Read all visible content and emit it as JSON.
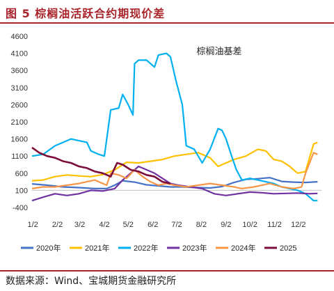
{
  "title": "图 5 棕榈油活跃合约期现价差",
  "source": "数据来源：Wind、宝城期货金融研究所",
  "chart_data": {
    "type": "line",
    "annotation": "棕榈油基差",
    "ylim": [
      -400,
      4600
    ],
    "y_ticks": [
      -400,
      100,
      600,
      1100,
      1600,
      2100,
      2600,
      3100,
      3600,
      4100,
      4600
    ],
    "x_ticks": [
      "1/2",
      "2/2",
      "3/2",
      "4/2",
      "5/2",
      "6/2",
      "7/2",
      "8/2",
      "9/2",
      "10/2",
      "11/2",
      "12/2"
    ],
    "x_unit": "day_of_year",
    "grid": false,
    "legend_position": "bottom",
    "series": [
      {
        "name": "2020年",
        "color": "#4472c4",
        "points": [
          [
            1,
            290
          ],
          [
            20,
            250
          ],
          [
            40,
            200
          ],
          [
            60,
            180
          ],
          [
            80,
            150
          ],
          [
            95,
            150
          ],
          [
            105,
            250
          ],
          [
            115,
            380
          ],
          [
            130,
            340
          ],
          [
            145,
            260
          ],
          [
            160,
            230
          ],
          [
            175,
            200
          ],
          [
            190,
            200
          ],
          [
            210,
            180
          ],
          [
            225,
            170
          ],
          [
            240,
            210
          ],
          [
            255,
            330
          ],
          [
            270,
            420
          ],
          [
            285,
            440
          ],
          [
            300,
            470
          ],
          [
            315,
            360
          ],
          [
            330,
            340
          ],
          [
            345,
            330
          ],
          [
            360,
            350
          ]
        ]
      },
      {
        "name": "2021年",
        "color": "#ffc000",
        "points": [
          [
            1,
            380
          ],
          [
            15,
            400
          ],
          [
            30,
            500
          ],
          [
            45,
            550
          ],
          [
            60,
            520
          ],
          [
            75,
            500
          ],
          [
            90,
            560
          ],
          [
            105,
            700
          ],
          [
            120,
            920
          ],
          [
            135,
            900
          ],
          [
            150,
            950
          ],
          [
            165,
            1000
          ],
          [
            180,
            1100
          ],
          [
            195,
            1150
          ],
          [
            210,
            1200
          ],
          [
            225,
            1050
          ],
          [
            235,
            800
          ],
          [
            245,
            900
          ],
          [
            255,
            1000
          ],
          [
            270,
            1100
          ],
          [
            285,
            1300
          ],
          [
            295,
            1250
          ],
          [
            305,
            1000
          ],
          [
            315,
            950
          ],
          [
            325,
            800
          ],
          [
            335,
            600
          ],
          [
            345,
            650
          ],
          [
            355,
            1450
          ],
          [
            360,
            1500
          ]
        ]
      },
      {
        "name": "2022年",
        "color": "#00b0f0",
        "points": [
          [
            1,
            1100
          ],
          [
            15,
            1150
          ],
          [
            30,
            1400
          ],
          [
            40,
            1500
          ],
          [
            50,
            1600
          ],
          [
            60,
            1550
          ],
          [
            70,
            1500
          ],
          [
            75,
            1250
          ],
          [
            85,
            1150
          ],
          [
            92,
            1100
          ],
          [
            95,
            1600
          ],
          [
            100,
            2450
          ],
          [
            110,
            2500
          ],
          [
            115,
            2900
          ],
          [
            122,
            2600
          ],
          [
            128,
            2300
          ],
          [
            130,
            3800
          ],
          [
            135,
            3900
          ],
          [
            145,
            3900
          ],
          [
            155,
            3700
          ],
          [
            160,
            4050
          ],
          [
            170,
            4100
          ],
          [
            175,
            4000
          ],
          [
            182,
            3300
          ],
          [
            190,
            2600
          ],
          [
            195,
            1400
          ],
          [
            205,
            1300
          ],
          [
            215,
            900
          ],
          [
            225,
            1300
          ],
          [
            235,
            1900
          ],
          [
            240,
            1850
          ],
          [
            245,
            1600
          ],
          [
            252,
            1100
          ],
          [
            258,
            700
          ],
          [
            265,
            400
          ],
          [
            275,
            450
          ],
          [
            285,
            400
          ],
          [
            295,
            350
          ],
          [
            305,
            300
          ],
          [
            315,
            200
          ],
          [
            325,
            150
          ],
          [
            335,
            100
          ],
          [
            345,
            0
          ],
          [
            350,
            -100
          ],
          [
            355,
            -200
          ],
          [
            360,
            -200
          ]
        ]
      },
      {
        "name": "2023年",
        "color": "#7030a0",
        "points": [
          [
            1,
            -200
          ],
          [
            15,
            -100
          ],
          [
            30,
            0
          ],
          [
            45,
            -50
          ],
          [
            60,
            0
          ],
          [
            75,
            100
          ],
          [
            90,
            80
          ],
          [
            105,
            150
          ],
          [
            115,
            400
          ],
          [
            125,
            600
          ],
          [
            135,
            800
          ],
          [
            145,
            700
          ],
          [
            155,
            600
          ],
          [
            165,
            450
          ],
          [
            175,
            300
          ],
          [
            185,
            250
          ],
          [
            200,
            200
          ],
          [
            215,
            150
          ],
          [
            230,
            0
          ],
          [
            245,
            -50
          ],
          [
            260,
            0
          ],
          [
            275,
            50
          ],
          [
            290,
            30
          ],
          [
            305,
            0
          ],
          [
            320,
            10
          ],
          [
            335,
            20
          ],
          [
            350,
            0
          ],
          [
            360,
            10
          ]
        ]
      },
      {
        "name": "2024年",
        "color": "#f79646",
        "points": [
          [
            1,
            150
          ],
          [
            15,
            200
          ],
          [
            30,
            200
          ],
          [
            45,
            250
          ],
          [
            60,
            300
          ],
          [
            70,
            350
          ],
          [
            80,
            400
          ],
          [
            90,
            300
          ],
          [
            95,
            250
          ],
          [
            100,
            600
          ],
          [
            110,
            550
          ],
          [
            120,
            450
          ],
          [
            130,
            700
          ],
          [
            140,
            500
          ],
          [
            150,
            350
          ],
          [
            160,
            250
          ],
          [
            170,
            300
          ],
          [
            180,
            250
          ],
          [
            195,
            200
          ],
          [
            210,
            250
          ],
          [
            225,
            300
          ],
          [
            240,
            250
          ],
          [
            255,
            200
          ],
          [
            265,
            150
          ],
          [
            280,
            200
          ],
          [
            300,
            300
          ],
          [
            315,
            200
          ],
          [
            330,
            150
          ],
          [
            340,
            200
          ],
          [
            345,
            600
          ],
          [
            350,
            900
          ],
          [
            355,
            1200
          ],
          [
            360,
            1150
          ]
        ]
      },
      {
        "name": "2025",
        "color": "#7b0e3a",
        "points": [
          [
            1,
            1350
          ],
          [
            10,
            1200
          ],
          [
            20,
            1100
          ],
          [
            30,
            1050
          ],
          [
            40,
            950
          ],
          [
            50,
            900
          ],
          [
            60,
            800
          ],
          [
            70,
            750
          ],
          [
            80,
            650
          ],
          [
            90,
            600
          ],
          [
            100,
            500
          ],
          [
            108,
            900
          ],
          [
            115,
            850
          ],
          [
            125,
            700
          ],
          [
            135,
            650
          ],
          [
            145,
            550
          ],
          [
            155,
            500
          ],
          [
            165,
            350
          ],
          [
            175,
            300
          ]
        ]
      }
    ]
  }
}
